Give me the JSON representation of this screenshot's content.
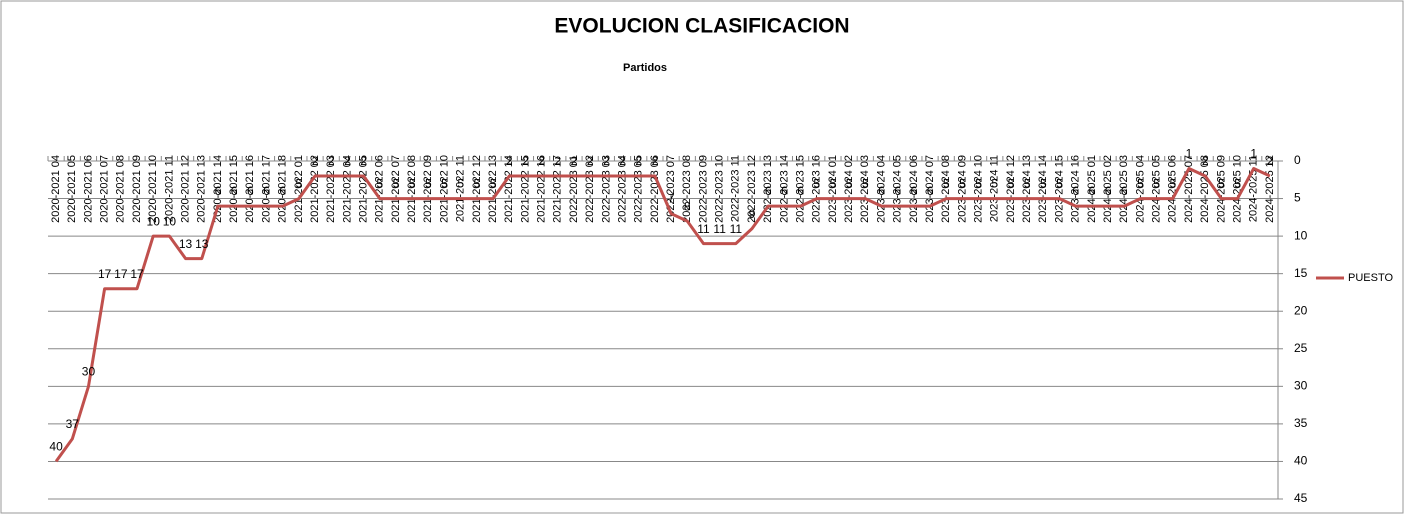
{
  "chart_data": {
    "type": "line",
    "title": "EVOLUCION CLASIFICACION",
    "x_label": "Partidos",
    "categories": [
      "2020-2021 04",
      "2020-2021 05",
      "2020-2021 06",
      "2020-2021 07",
      "2020-2021 08",
      "2020-2021 09",
      "2020-2021 10",
      "2020-2021 11",
      "2020-2021 12",
      "2020-2021 13",
      "2020-2021 14",
      "2020-2021 15",
      "2020-2021 16",
      "2020-2021 17",
      "2020-2021 18",
      "2021-2022 01",
      "2021-2022 02",
      "2021-2022 03",
      "2021-2022 04",
      "2021-2022 05",
      "2021-2022 06",
      "2021-2022 07",
      "2021-2022 08",
      "2021-2022 09",
      "2021-2022 10",
      "2021-2022 11",
      "2021-2022 12",
      "2021-2022 13",
      "2021-2022 14",
      "2021-2022 15",
      "2021-2022 16",
      "2021-2022 17",
      "2022-2023 01",
      "2022-2023 02",
      "2022-2023 03",
      "2022-2023 04",
      "2022-2023 05",
      "2022-2023 06",
      "2022-2023 07",
      "2022-2023 08",
      "2022-2023 09",
      "2022-2023 10",
      "2022-2023 11",
      "2022-2023 12",
      "2022-2023 13",
      "2022-2023 14",
      "2022-2023 15",
      "2022-2023 16",
      "2023-2024 01",
      "2023-2024 02",
      "2023-2024 03",
      "2023-2024 04",
      "2023-2024 05",
      "2023-2024 06",
      "2023-2024 07",
      "2023-2024 08",
      "2023-2024 09",
      "2023-2024 10",
      "2023-2024 11",
      "2023-2024 12",
      "2023-2024 13",
      "2023-2024 14",
      "2023-2024 15",
      "2023-2024 16",
      "2024-2025 01",
      "2024-2025 02",
      "2024-2025 03",
      "2024-2025 04",
      "2024-2025 05",
      "2024-2025 06",
      "2024-2025 07",
      "2024-2025 08",
      "2024-2025 09",
      "2024-2025 10",
      "2024-2025 11",
      "2024-2025 12"
    ],
    "series": [
      {
        "name": "PUESTO",
        "color": "#c0504d",
        "values": [
          40,
          37,
          30,
          17,
          17,
          17,
          10,
          10,
          13,
          13,
          6,
          6,
          6,
          6,
          6,
          5,
          2,
          2,
          2,
          2,
          5,
          5,
          5,
          5,
          5,
          5,
          5,
          5,
          2,
          2,
          2,
          2,
          2,
          2,
          2,
          2,
          2,
          2,
          7,
          8,
          11,
          11,
          11,
          9,
          6,
          6,
          6,
          5,
          5,
          5,
          5,
          6,
          6,
          6,
          6,
          5,
          5,
          5,
          5,
          5,
          5,
          5,
          5,
          6,
          6,
          6,
          6,
          5,
          5,
          5,
          1,
          2,
          5,
          5,
          1,
          2
        ]
      }
    ],
    "ylim": [
      0,
      45
    ],
    "yticks": [
      0,
      5,
      10,
      15,
      20,
      25,
      30,
      35,
      40,
      45
    ],
    "y_inverted": true,
    "y_axis_side": "right",
    "grid": true,
    "legend_position": "right"
  }
}
